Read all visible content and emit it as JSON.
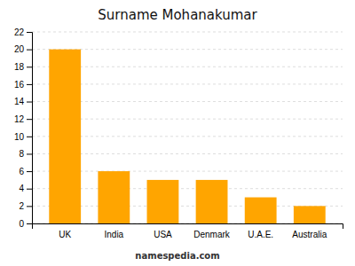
{
  "chart_data": {
    "type": "bar",
    "title": "Surname Mohanakumar",
    "categories": [
      "UK",
      "India",
      "USA",
      "Denmark",
      "U.A.E.",
      "Australia"
    ],
    "values": [
      20,
      6,
      5,
      5,
      3,
      2
    ],
    "color": "#FFA500",
    "ylim": [
      0,
      22
    ],
    "yticks": [
      0,
      2,
      4,
      6,
      8,
      10,
      12,
      14,
      16,
      18,
      20,
      22
    ],
    "grid": true,
    "footer": "namespedia.com"
  }
}
